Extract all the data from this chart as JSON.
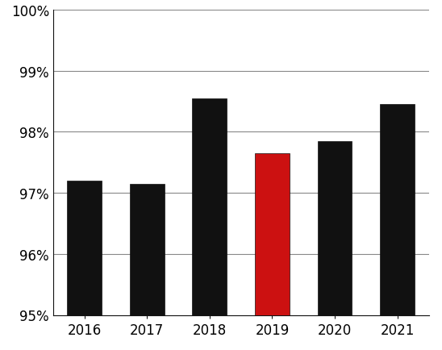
{
  "categories": [
    "2016",
    "2017",
    "2018",
    "2019",
    "2020",
    "2021"
  ],
  "values": [
    97.2,
    97.15,
    98.55,
    97.65,
    97.85,
    98.45
  ],
  "bar_colors": [
    "#111111",
    "#111111",
    "#111111",
    "#cc1111",
    "#111111",
    "#111111"
  ],
  "ylim": [
    95,
    100
  ],
  "yticks": [
    95,
    96,
    97,
    98,
    99,
    100
  ],
  "background_color": "#ffffff",
  "bar_edge_color": "#111111",
  "grid_color": "#888888",
  "figsize": [
    5.48,
    4.35
  ],
  "dpi": 100,
  "tick_fontsize": 12,
  "bar_width": 0.55
}
